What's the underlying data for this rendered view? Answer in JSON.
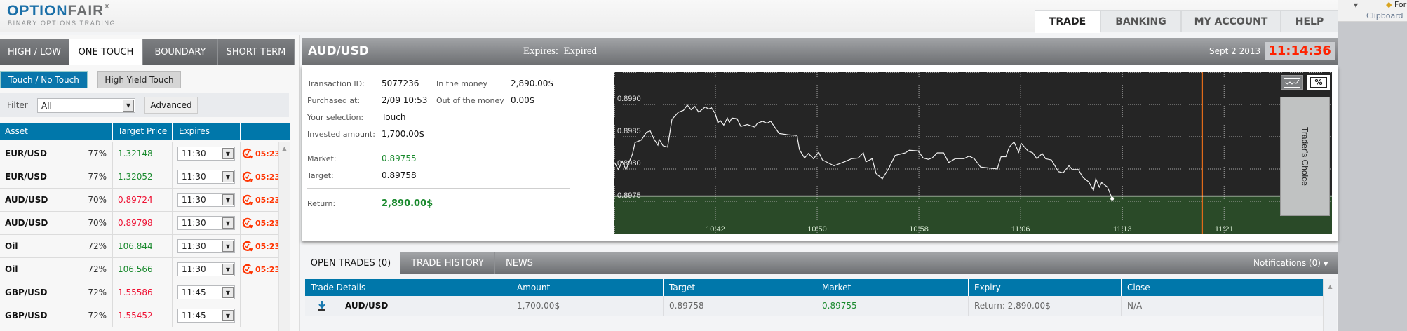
{
  "brand": {
    "name_part1": "OPTION",
    "name_part2": "FAIR",
    "registered": "®",
    "tagline": "BINARY OPTIONS TRADING"
  },
  "nav": {
    "tabs": [
      {
        "label": "TRADE",
        "active": true
      },
      {
        "label": "BANKING"
      },
      {
        "label": "MY ACCOUNT"
      },
      {
        "label": "HELP"
      }
    ]
  },
  "office": {
    "format_label": "Forma",
    "group_label": "Clipboard"
  },
  "left": {
    "tabs": [
      {
        "label": "HIGH / LOW"
      },
      {
        "label": "ONE TOUCH",
        "active": true
      },
      {
        "label": "BOUNDARY"
      },
      {
        "label": "SHORT TERM"
      }
    ],
    "subtabs": [
      {
        "label": "Touch / No Touch",
        "active": true
      },
      {
        "label": "High Yield Touch"
      }
    ],
    "filter_label": "Filter",
    "filter_value": "All",
    "advanced_label": "Advanced",
    "columns": [
      "Asset",
      "Target Price",
      "Expires",
      ""
    ],
    "rows": [
      {
        "asset": "EUR/USD",
        "payout": "77%",
        "target": "1.32148",
        "dir": "up",
        "expires": "11:30",
        "timer": "05:23"
      },
      {
        "asset": "EUR/USD",
        "payout": "77%",
        "target": "1.32052",
        "dir": "up",
        "expires": "11:30",
        "timer": "05:23"
      },
      {
        "asset": "AUD/USD",
        "payout": "70%",
        "target": "0.89724",
        "dir": "down",
        "expires": "11:30",
        "timer": "05:23"
      },
      {
        "asset": "AUD/USD",
        "payout": "70%",
        "target": "0.89798",
        "dir": "down",
        "expires": "11:30",
        "timer": "05:23"
      },
      {
        "asset": "Oil",
        "payout": "72%",
        "target": "106.844",
        "dir": "up",
        "expires": "11:30",
        "timer": "05:23"
      },
      {
        "asset": "Oil",
        "payout": "72%",
        "target": "106.566",
        "dir": "up",
        "expires": "11:30",
        "timer": "05:23"
      },
      {
        "asset": "GBP/USD",
        "payout": "72%",
        "target": "1.55586",
        "dir": "down",
        "expires": "11:45",
        "timer": null
      },
      {
        "asset": "GBP/USD",
        "payout": "72%",
        "target": "1.55452",
        "dir": "down",
        "expires": "11:45",
        "timer": null
      }
    ]
  },
  "main": {
    "title": "AUD/USD",
    "expires": "Expires:  Expired",
    "date": "Sept 2 2013",
    "clock": "11:14:36",
    "info": {
      "transaction_id_label": "Transaction ID:",
      "transaction_id": "5077236",
      "purchased_label": "Purchased at:",
      "purchased": "2/09 10:53",
      "selection_label": "Your selection:",
      "selection": "Touch",
      "invested_label": "Invested amount:",
      "invested": "1,700.00$",
      "itm_label": "In the money",
      "itm": "2,890.00$",
      "otm_label": "Out of the money",
      "otm": "0.00$",
      "market_label": "Market:",
      "market": "0.89755",
      "target_label": "Target:",
      "target": "0.89758",
      "return_label": "Return:",
      "return": "2,890.00$"
    },
    "traders_choice": "Trader's Choice",
    "percent_btn": "%"
  },
  "chart_data": {
    "type": "line",
    "title": "AUD/USD",
    "x_unit": "minutes after 10:00",
    "xlim": [
      34.06,
      90.48
    ],
    "ylim": [
      0.897,
      0.8995
    ],
    "grid": true,
    "yticks": [
      {
        "label": "0.8990",
        "v": 0.899
      },
      {
        "label": "0.8985",
        "v": 0.8985
      },
      {
        "label": "0.8980",
        "v": 0.898
      },
      {
        "label": "0.8975",
        "v": 0.8975
      }
    ],
    "xticks": [
      {
        "label": "10:42",
        "t": 42
      },
      {
        "label": "10:50",
        "t": 50
      },
      {
        "label": "10:58",
        "t": 58
      },
      {
        "label": "11:06",
        "t": 66
      },
      {
        "label": "11:13",
        "t": 74
      },
      {
        "label": "11:21",
        "t": 82
      }
    ],
    "target": 0.89758,
    "expiry_marker_t": 80.3,
    "series": [
      {
        "name": "AUD/USD",
        "t": [
          34.07,
          34.37,
          34.67,
          34.97,
          35.48,
          35.68,
          36.18,
          36.58,
          36.88,
          37.18,
          37.48,
          37.58,
          37.88,
          38.24,
          38.58,
          39.09,
          39.49,
          39.79,
          40.09,
          40.39,
          40.69,
          41.19,
          41.49,
          41.69,
          41.99,
          42.19,
          42.39,
          42.66,
          42.94,
          43.1,
          43.3,
          43.7,
          44.0,
          44.5,
          45.1,
          45.3,
          45.7,
          46.06,
          46.35,
          47.01,
          47.71,
          48.41,
          48.61,
          49.01,
          49.31,
          49.71,
          50.12,
          50.42,
          50.72,
          51.32,
          52.12,
          52.72,
          53.22,
          53.63,
          53.83,
          54.33,
          54.63,
          55.13,
          55.63,
          56.13,
          56.94,
          57.24,
          57.94,
          58.34,
          58.74,
          59.04,
          59.44,
          59.94,
          60.34,
          60.85,
          61.55,
          61.95,
          62.35,
          62.85,
          63.35,
          64.16,
          64.46,
          64.84,
          65.11,
          65.48,
          65.85,
          66.03,
          66.58,
          66.95,
          67.28,
          67.69,
          67.96,
          68.42,
          68.97,
          69.34,
          69.8,
          70.08,
          70.54,
          70.9,
          71.36,
          71.73,
          71.91,
          72.19,
          72.37,
          72.83,
          73.2
        ],
        "v": [
          0.8981,
          0.89799,
          0.89812,
          0.89799,
          0.89823,
          0.89841,
          0.89845,
          0.89857,
          0.89859,
          0.89846,
          0.89837,
          0.89846,
          0.89836,
          0.89834,
          0.89877,
          0.89888,
          0.89891,
          0.89899,
          0.89892,
          0.89897,
          0.89888,
          0.89896,
          0.89893,
          0.89895,
          0.89886,
          0.89872,
          0.89875,
          0.89868,
          0.89879,
          0.89872,
          0.89879,
          0.89878,
          0.89866,
          0.89869,
          0.89865,
          0.89871,
          0.89874,
          0.89871,
          0.89874,
          0.89855,
          0.89853,
          0.89852,
          0.8983,
          0.89817,
          0.89824,
          0.89816,
          0.89826,
          0.89814,
          0.89811,
          0.89805,
          0.89811,
          0.89816,
          0.89817,
          0.89825,
          0.89811,
          0.89816,
          0.89793,
          0.89785,
          0.89801,
          0.89821,
          0.89825,
          0.89829,
          0.89828,
          0.89817,
          0.89815,
          0.89817,
          0.89825,
          0.89825,
          0.8981,
          0.89816,
          0.89816,
          0.8982,
          0.89816,
          0.89803,
          0.89802,
          0.898,
          0.89819,
          0.89819,
          0.89834,
          0.89842,
          0.89826,
          0.8984,
          0.89828,
          0.89825,
          0.89816,
          0.89824,
          0.89816,
          0.89814,
          0.89796,
          0.89794,
          0.89805,
          0.89799,
          0.89799,
          0.89787,
          0.8978,
          0.89767,
          0.89785,
          0.89772,
          0.89779,
          0.89772,
          0.89754
        ]
      }
    ]
  },
  "bottom": {
    "tabs": [
      {
        "label": "OPEN TRADES (0)",
        "active": true
      },
      {
        "label": "TRADE HISTORY"
      },
      {
        "label": "NEWS"
      }
    ],
    "notifications": "Notifications (0)",
    "columns": [
      "Trade Details",
      "Amount",
      "Target",
      "Market",
      "Expiry",
      "Close"
    ],
    "rows": [
      {
        "asset": "AUD/USD",
        "amount": "1,700.00$",
        "target": "0.89758",
        "market": "0.89755",
        "expiry": "Return: 2,890.00$",
        "close": "N/A"
      }
    ]
  },
  "colors": {
    "up": "#1a8a2e",
    "down": "#ee1133",
    "accent": "#0077aa",
    "timer": "#ff3300",
    "clock": "#ff2200"
  }
}
